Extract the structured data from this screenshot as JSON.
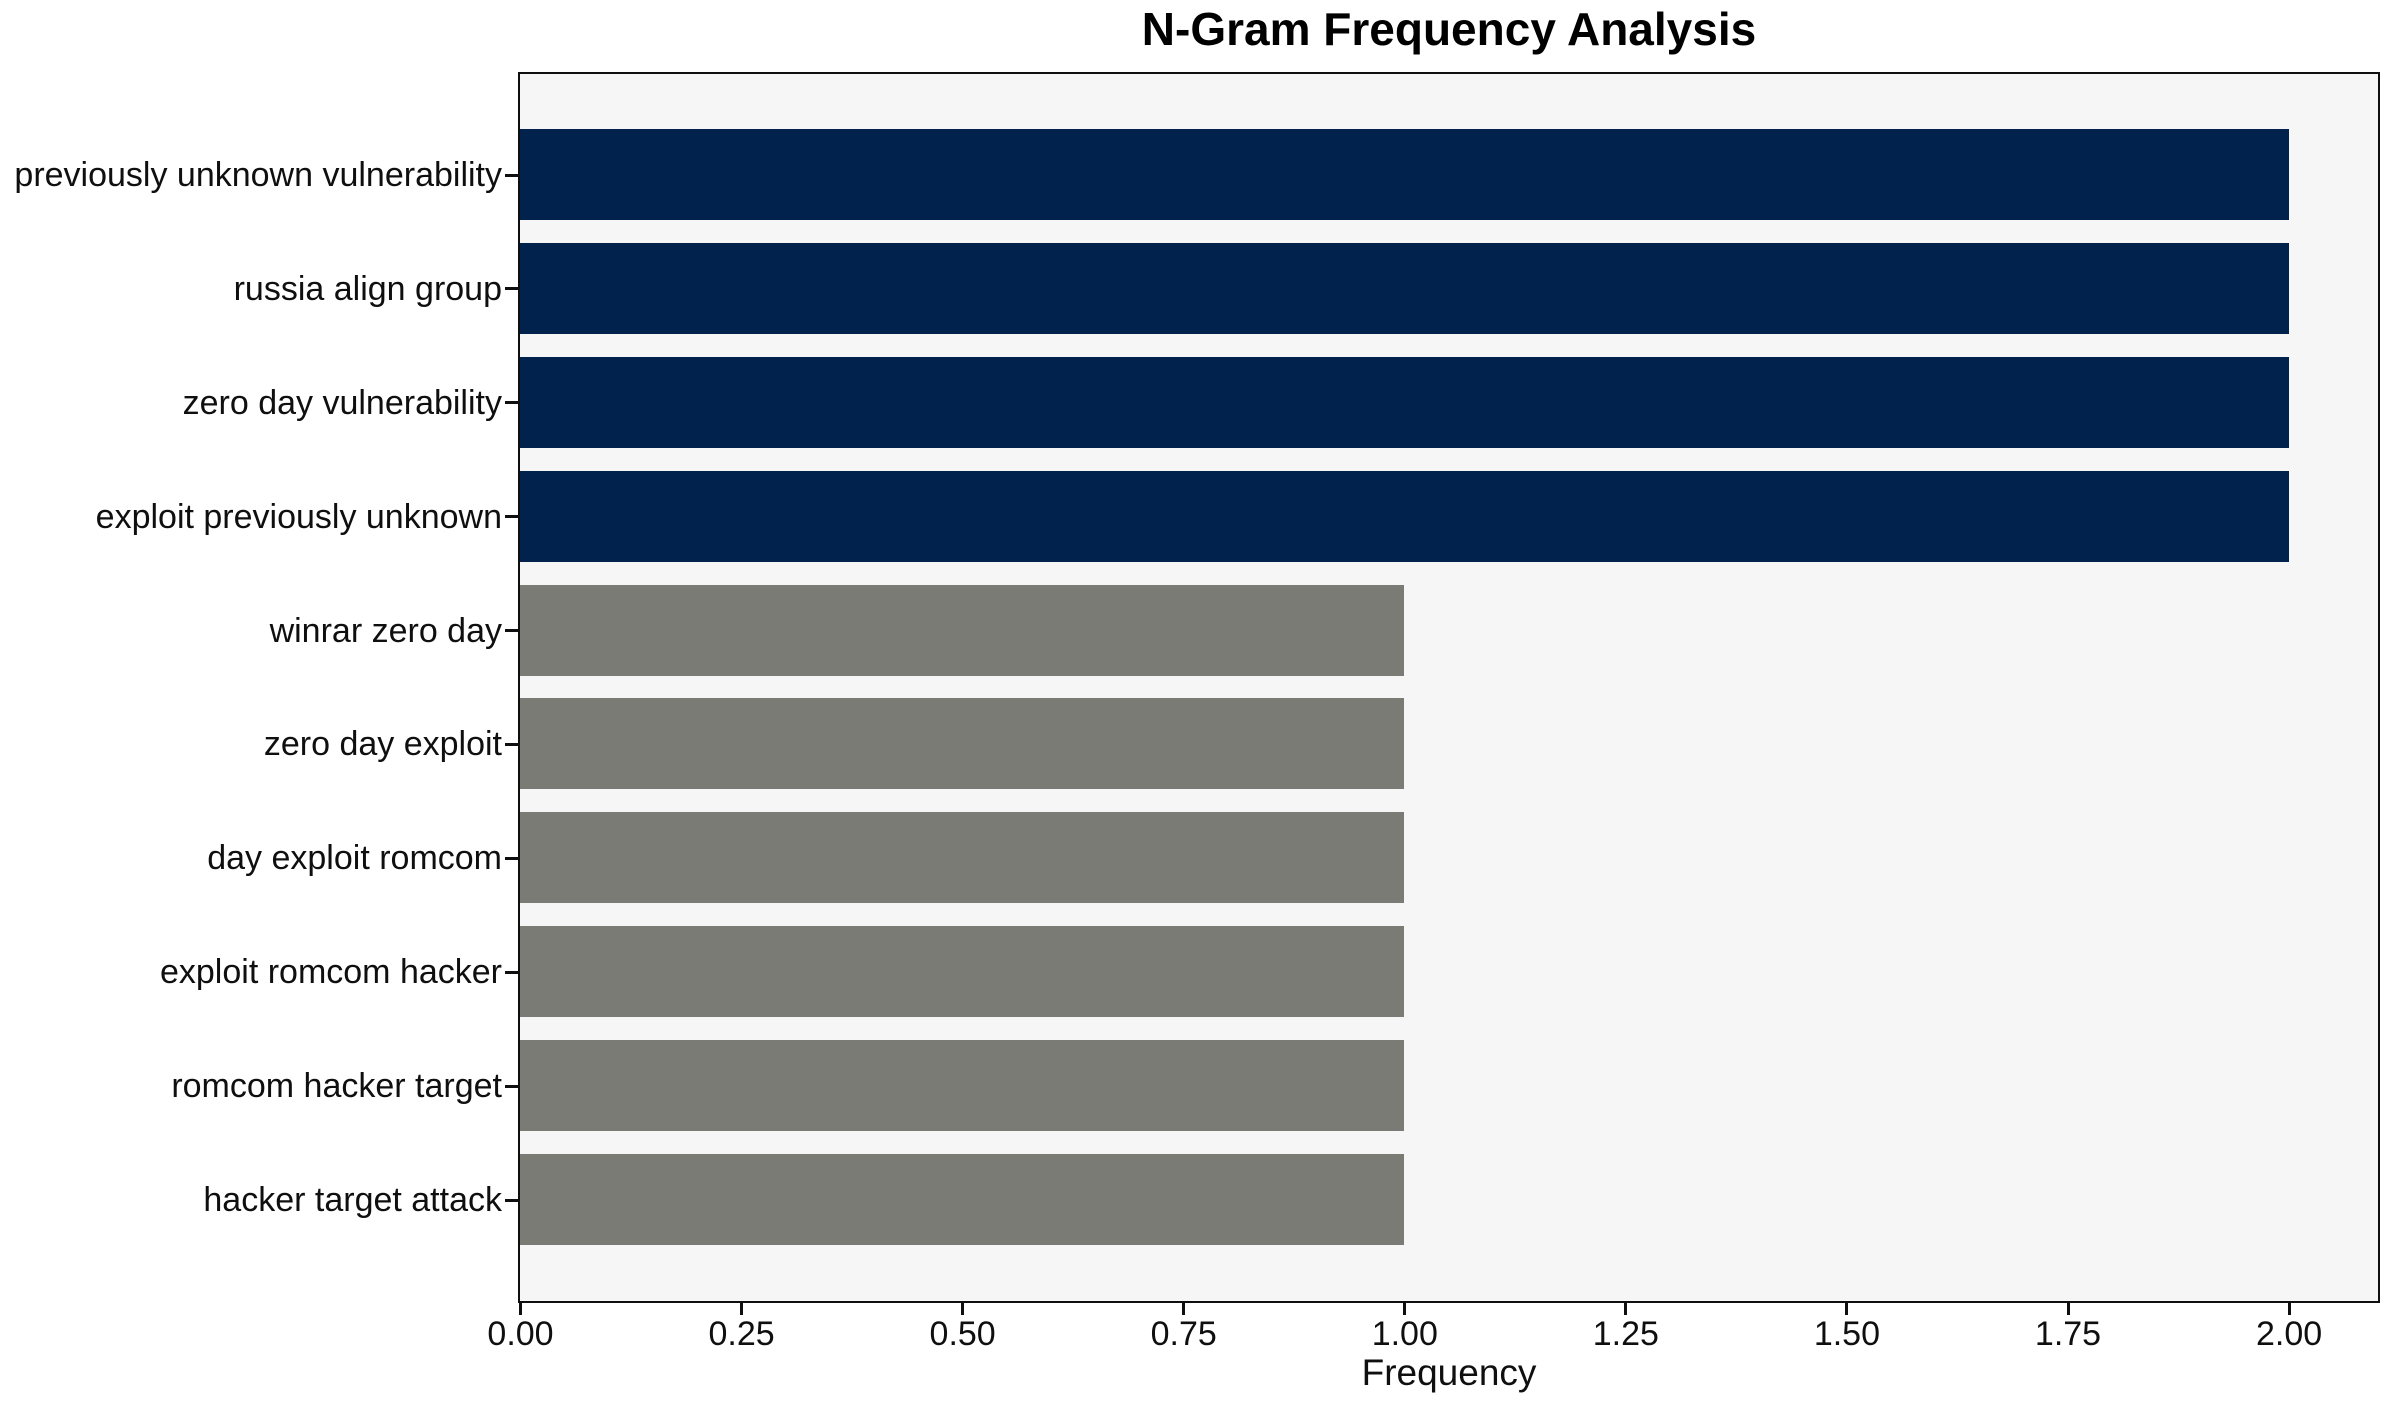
{
  "chart_data": {
    "type": "bar",
    "orientation": "horizontal",
    "title": "N-Gram Frequency Analysis",
    "xlabel": "Frequency",
    "ylabel": "",
    "categories": [
      "previously unknown vulnerability",
      "russia align group",
      "zero day vulnerability",
      "exploit previously unknown",
      "winrar zero day",
      "zero day exploit",
      "day exploit romcom",
      "exploit romcom hacker",
      "romcom hacker target",
      "hacker target attack"
    ],
    "values": [
      2,
      2,
      2,
      2,
      1,
      1,
      1,
      1,
      1,
      1
    ],
    "bar_colors": [
      "#00224c",
      "#00224c",
      "#00224c",
      "#00224c",
      "#7b7b76",
      "#7b7b76",
      "#7b7b76",
      "#7b7b76",
      "#7b7b76",
      "#7b7b76"
    ],
    "xlim": [
      0,
      2.1
    ],
    "x_tick_values": [
      0,
      0.25,
      0.5,
      0.75,
      1.0,
      1.25,
      1.5,
      1.75,
      2.0
    ],
    "x_tick_labels": [
      "0.00",
      "0.25",
      "0.50",
      "0.75",
      "1.00",
      "1.25",
      "1.50",
      "1.75",
      "2.00"
    ],
    "grid": false,
    "legend_position": "none",
    "plot_background": "#f6f6f6",
    "page_background": "#ffffff",
    "accent_color_high": "#00224c",
    "accent_color_low": "#7b7b76"
  }
}
